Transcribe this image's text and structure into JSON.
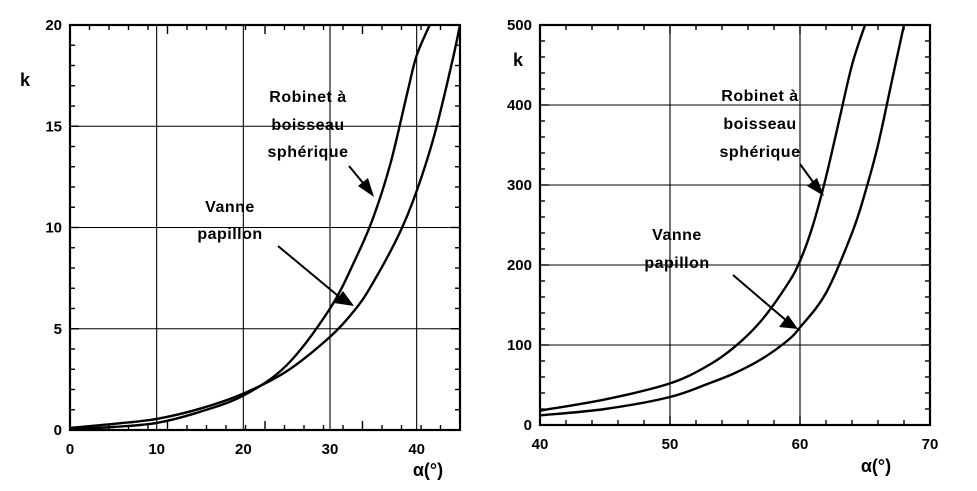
{
  "chart_data": [
    {
      "type": "line",
      "xlabel": "α(°)",
      "ylabel": "k",
      "xlim": [
        0,
        45
      ],
      "ylim": [
        0,
        20
      ],
      "x_ticks": [
        0,
        10,
        20,
        30,
        40
      ],
      "y_ticks": [
        0,
        5,
        10,
        15,
        20
      ],
      "grid": true,
      "series": [
        {
          "name": "Robinet à boisseau sphérique",
          "x": [
            0,
            5,
            10,
            15,
            20,
            25,
            30,
            33,
            35,
            37,
            39,
            40,
            41.5
          ],
          "y": [
            0.05,
            0.15,
            0.35,
            0.9,
            1.7,
            3.2,
            6.0,
            8.5,
            10.5,
            13.2,
            16.8,
            18.5,
            20
          ]
        },
        {
          "name": "Vanne papillon",
          "x": [
            0,
            5,
            10,
            15,
            20,
            25,
            30,
            33,
            35,
            38,
            40,
            42,
            44,
            45
          ],
          "y": [
            0.1,
            0.3,
            0.55,
            1.05,
            1.8,
            2.9,
            4.6,
            6.0,
            7.3,
            9.7,
            11.8,
            14.5,
            18.0,
            20
          ]
        }
      ],
      "annotations": [
        {
          "text_lines": [
            "Robinet à",
            "boisseau",
            "sphérique"
          ]
        },
        {
          "text_lines": [
            "Vanne",
            "papillon"
          ]
        }
      ]
    },
    {
      "type": "line",
      "xlabel": "α(°)",
      "ylabel": "k",
      "xlim": [
        40,
        70
      ],
      "ylim": [
        0,
        500
      ],
      "x_ticks": [
        40,
        50,
        60,
        70
      ],
      "y_ticks": [
        0,
        100,
        200,
        300,
        400,
        500
      ],
      "grid": true,
      "series": [
        {
          "name": "Robinet à boisseau sphérique",
          "x": [
            40,
            45,
            50,
            53,
            55,
            57,
            59,
            60,
            61,
            62,
            63,
            64,
            65
          ],
          "y": [
            18,
            32,
            52,
            75,
            98,
            130,
            175,
            205,
            250,
            310,
            380,
            450,
            500
          ]
        },
        {
          "name": "Vanne papillon",
          "x": [
            40,
            45,
            50,
            53,
            55,
            57,
            59,
            60,
            62,
            64,
            65,
            66,
            67,
            68
          ],
          "y": [
            12,
            20,
            35,
            52,
            65,
            82,
            105,
            122,
            165,
            240,
            290,
            350,
            425,
            500
          ]
        }
      ],
      "annotations": [
        {
          "text_lines": [
            "Robinet à",
            "boisseau",
            "sphérique"
          ]
        },
        {
          "text_lines": [
            "Vanne",
            "papillon"
          ]
        }
      ]
    }
  ]
}
